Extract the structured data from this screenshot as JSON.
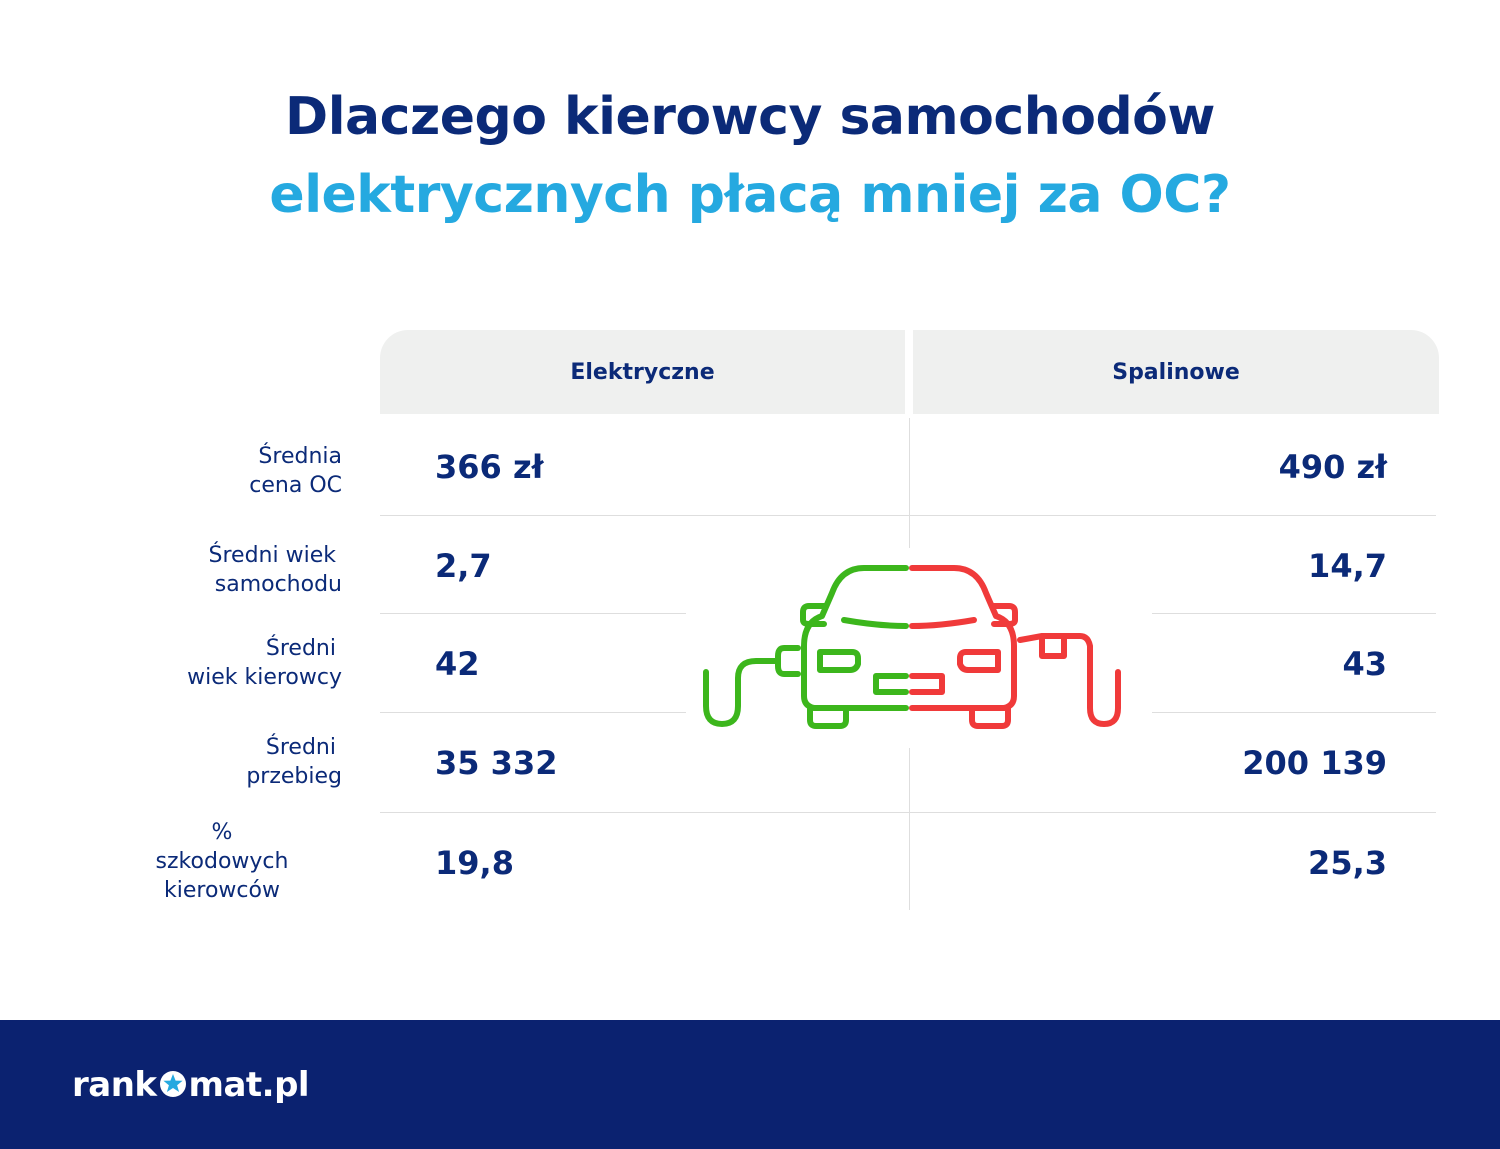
{
  "title": {
    "line1": "Dlaczego kierowcy samochodów",
    "line2": "elektrycznych płacą mniej za OC?"
  },
  "columns": {
    "electric": "Elektryczne",
    "combustion": "Spalinowe"
  },
  "rows": [
    {
      "label_lines": [
        "Średnia",
        "cena OC"
      ],
      "electric": "366 zł",
      "combustion": "490 zł"
    },
    {
      "label_lines": [
        "Średni wiek",
        "samochodu"
      ],
      "electric": "2,7",
      "combustion": "14,7"
    },
    {
      "label_lines": [
        "Średni",
        "wiek kierowcy"
      ],
      "electric": "42",
      "combustion": "43"
    },
    {
      "label_lines": [
        "Średni",
        "przebieg"
      ],
      "electric": "35 332",
      "combustion": "200 139"
    },
    {
      "label_lines": [
        "%",
        "szkodowych",
        "kierowców"
      ],
      "electric": "19,8",
      "combustion": "25,3"
    }
  ],
  "footer": {
    "logo_prefix": "rank",
    "logo_suffix": "mat.pl"
  },
  "icons": {
    "car_illustration": "car-half-electric-half-combustion-icon",
    "logo_star": "star-icon"
  },
  "colors": {
    "navy": "#0b2a78",
    "light_blue": "#25a9e0",
    "electric_green": "#3cb61c",
    "combustion_red": "#f03a3a",
    "footer_bg": "#0b2270",
    "header_bg": "#eff0ef"
  }
}
